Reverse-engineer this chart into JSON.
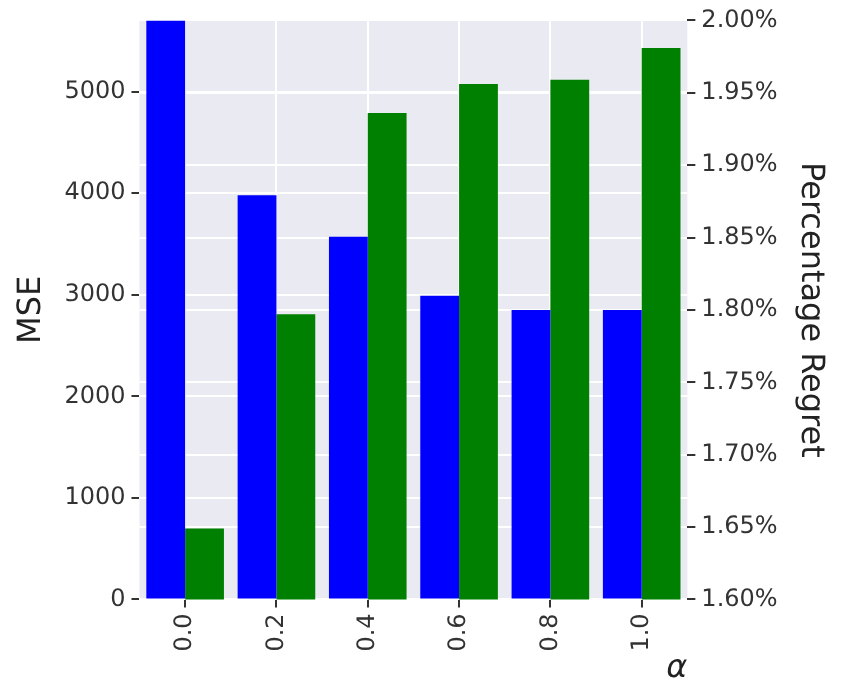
{
  "chart_data": {
    "type": "bar",
    "xlabel": "α",
    "ylabel": "MSE",
    "y2label": "Percentage Regret",
    "categories": [
      "0.0",
      "0.2",
      "0.4",
      "0.6",
      "0.8",
      "1.0"
    ],
    "series": [
      {
        "color": "#0000ff",
        "values": [
          5700,
          3980,
          3570,
          2990,
          2850,
          2850
        ]
      },
      {
        "color": "#008000",
        "axis": "y2",
        "values": [
          1.649,
          1.797,
          1.936,
          1.956,
          1.959,
          1.981
        ]
      }
    ],
    "ylim": [
      0,
      5700
    ],
    "yticks": [
      0,
      1000,
      2000,
      3000,
      4000,
      5000
    ],
    "y2lim": [
      1.6,
      2.0
    ],
    "y2ticks": [
      {
        "value": 1.6,
        "label": "1.60%"
      },
      {
        "value": 1.65,
        "label": "1.65%"
      },
      {
        "value": 1.7,
        "label": "1.70%"
      },
      {
        "value": 1.75,
        "label": "1.75%"
      },
      {
        "value": 1.8,
        "label": "1.80%"
      },
      {
        "value": 1.85,
        "label": "1.85%"
      },
      {
        "value": 1.9,
        "label": "1.90%"
      },
      {
        "value": 1.95,
        "label": "1.95%"
      },
      {
        "value": 2.0,
        "label": "2.00%"
      }
    ],
    "grid": true,
    "legend": false
  }
}
